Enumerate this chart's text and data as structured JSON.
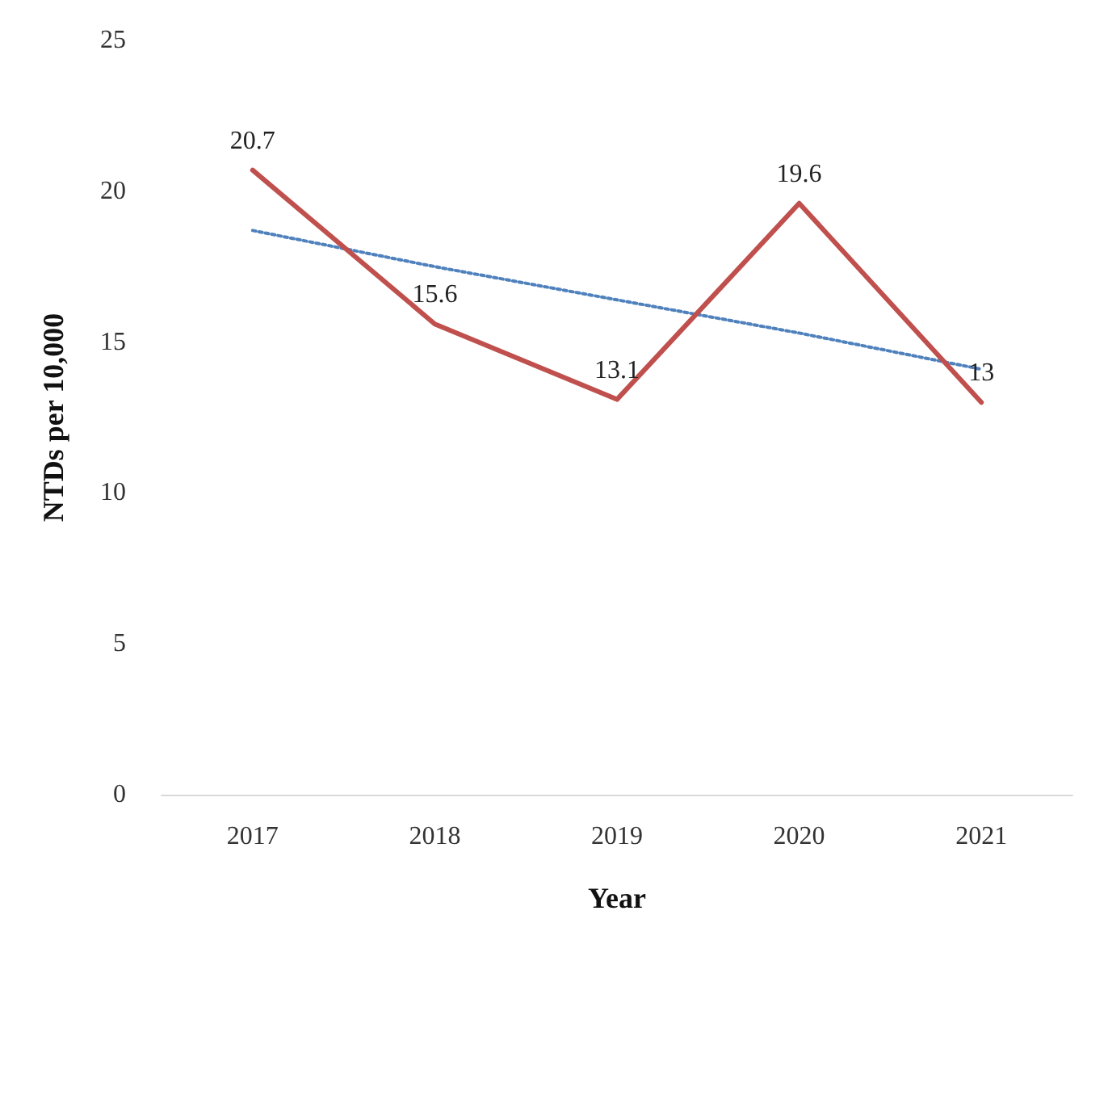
{
  "chart_data": {
    "type": "line",
    "xlabel": "Year",
    "ylabel": "NTDs per 10,000",
    "categories": [
      "2017",
      "2018",
      "2019",
      "2020",
      "2021"
    ],
    "series": [
      {
        "color": "#c0504d",
        "values": [
          20.7,
          15.6,
          13.1,
          19.6,
          13
        ],
        "value_labels": [
          "20.7",
          "15.6",
          "13.1",
          "19.6",
          "13"
        ],
        "line_style": "solid"
      },
      {
        "color": "#4f81bd",
        "values": [
          18.7,
          17.5,
          16.4,
          15.3,
          14.1
        ],
        "line_style": "dotted"
      }
    ],
    "ylim": [
      0,
      25
    ],
    "yticks": [
      0,
      5,
      10,
      15,
      20,
      25
    ],
    "grid": false,
    "marker": "none"
  }
}
